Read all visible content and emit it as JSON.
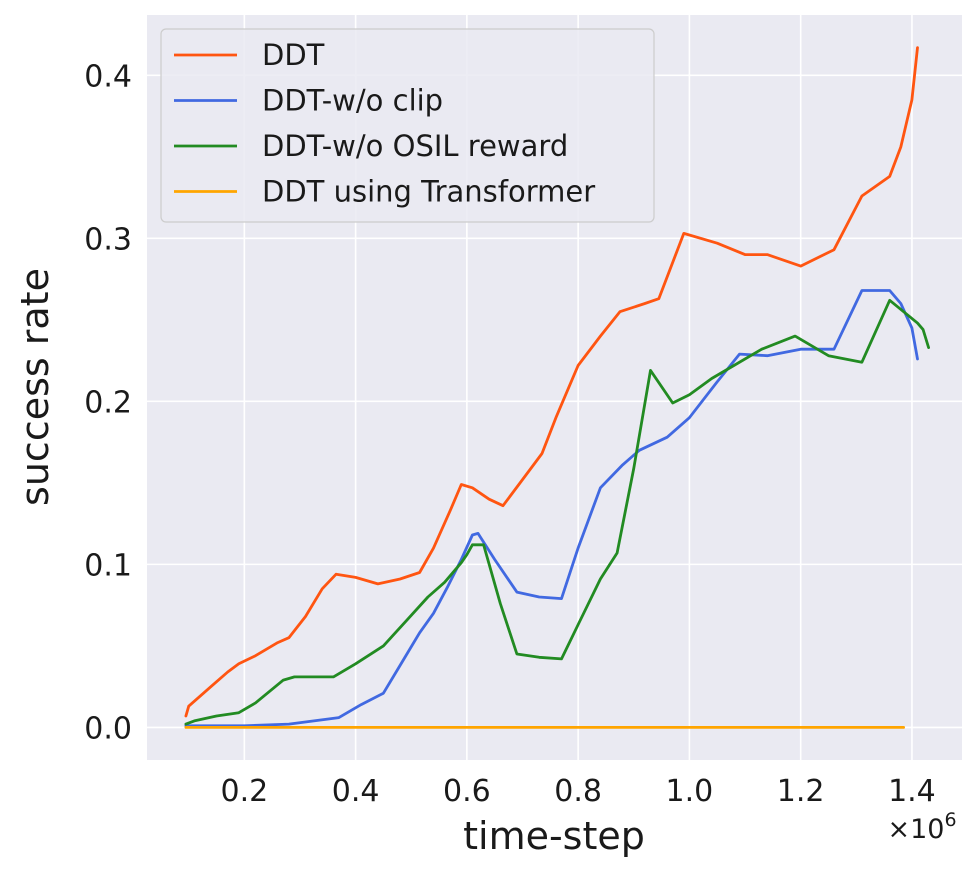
{
  "chart_data": {
    "type": "line",
    "title": "",
    "xlabel": "time-step",
    "ylabel": "success rate",
    "x_multiplier_label": "×10",
    "x_multiplier_exponent": "6",
    "x_scale": 1000000,
    "xlim": [
      25000,
      1490000
    ],
    "ylim": [
      -0.02,
      0.437
    ],
    "xticks": [
      200000,
      400000,
      600000,
      800000,
      1000000,
      1200000,
      1400000
    ],
    "xtick_labels": [
      "0.2",
      "0.4",
      "0.6",
      "0.8",
      "1.0",
      "1.2",
      "1.4"
    ],
    "yticks": [
      0.0,
      0.1,
      0.2,
      0.3,
      0.4
    ],
    "ytick_labels": [
      "0.0",
      "0.1",
      "0.2",
      "0.3",
      "0.4"
    ],
    "grid": true,
    "legend_position": "top-left",
    "series": [
      {
        "name": "DDT",
        "color": "#ff5511",
        "x": [
          95000,
          100000,
          140000,
          170000,
          190000,
          220000,
          260000,
          280000,
          310000,
          340000,
          365000,
          400000,
          440000,
          480000,
          515000,
          540000,
          570000,
          590000,
          610000,
          640000,
          665000,
          700000,
          735000,
          760000,
          800000,
          840000,
          875000,
          920000,
          945000,
          990000,
          1050000,
          1100000,
          1140000,
          1200000,
          1260000,
          1310000,
          1360000,
          1380000,
          1400000,
          1410000
        ],
        "y": [
          0.007,
          0.013,
          0.025,
          0.034,
          0.039,
          0.044,
          0.052,
          0.055,
          0.068,
          0.085,
          0.094,
          0.092,
          0.088,
          0.091,
          0.095,
          0.11,
          0.133,
          0.149,
          0.147,
          0.14,
          0.136,
          0.152,
          0.168,
          0.19,
          0.222,
          0.24,
          0.255,
          0.26,
          0.263,
          0.303,
          0.297,
          0.29,
          0.29,
          0.283,
          0.293,
          0.326,
          0.338,
          0.356,
          0.385,
          0.417
        ]
      },
      {
        "name": "DDT-w/o clip",
        "color": "#4169e1",
        "x": [
          95000,
          120000,
          200000,
          280000,
          370000,
          410000,
          450000,
          480000,
          515000,
          540000,
          565000,
          590000,
          610000,
          620000,
          650000,
          690000,
          730000,
          770000,
          800000,
          840000,
          880000,
          910000,
          960000,
          1000000,
          1050000,
          1090000,
          1140000,
          1200000,
          1260000,
          1310000,
          1360000,
          1380000,
          1400000,
          1410000
        ],
        "y": [
          0.001,
          0.001,
          0.001,
          0.002,
          0.006,
          0.014,
          0.021,
          0.038,
          0.058,
          0.07,
          0.086,
          0.103,
          0.118,
          0.119,
          0.103,
          0.083,
          0.08,
          0.079,
          0.11,
          0.147,
          0.161,
          0.17,
          0.178,
          0.19,
          0.212,
          0.229,
          0.228,
          0.232,
          0.232,
          0.268,
          0.268,
          0.26,
          0.245,
          0.226
        ]
      },
      {
        "name": "DDT-w/o OSIL reward",
        "color": "#228b22",
        "x": [
          95000,
          110000,
          150000,
          190000,
          220000,
          270000,
          290000,
          360000,
          400000,
          450000,
          490000,
          530000,
          560000,
          590000,
          600000,
          610000,
          630000,
          660000,
          690000,
          730000,
          770000,
          800000,
          840000,
          870000,
          900000,
          930000,
          970000,
          1000000,
          1040000,
          1080000,
          1130000,
          1190000,
          1250000,
          1310000,
          1360000,
          1410000,
          1420000,
          1430000
        ],
        "y": [
          0.002,
          0.004,
          0.007,
          0.009,
          0.015,
          0.029,
          0.031,
          0.031,
          0.039,
          0.05,
          0.065,
          0.08,
          0.089,
          0.101,
          0.106,
          0.112,
          0.112,
          0.076,
          0.045,
          0.043,
          0.042,
          0.063,
          0.091,
          0.107,
          0.159,
          0.219,
          0.199,
          0.204,
          0.214,
          0.222,
          0.232,
          0.24,
          0.228,
          0.224,
          0.262,
          0.248,
          0.244,
          0.233
        ]
      },
      {
        "name": "DDT using Transformer",
        "color": "#ffa500",
        "x": [
          95000,
          1385000
        ],
        "y": [
          0.0,
          0.0
        ]
      }
    ]
  }
}
